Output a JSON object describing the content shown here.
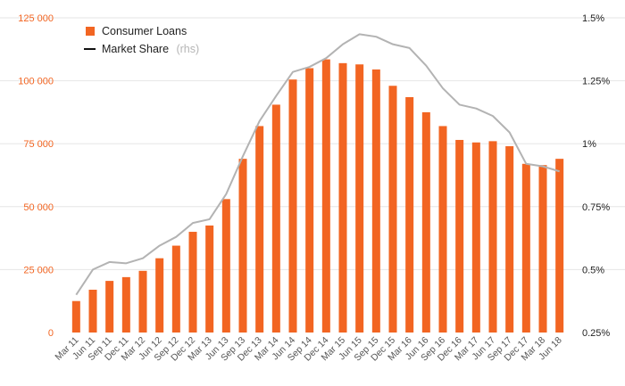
{
  "chart_data": {
    "type": "bar",
    "categories": [
      "Mar 11",
      "Jun 11",
      "Sep 11",
      "Dec 11",
      "Mar 12",
      "Jun 12",
      "Sep 12",
      "Dec 12",
      "Mar 13",
      "Jun 13",
      "Sep 13",
      "Dec 13",
      "Mar 14",
      "Jun 14",
      "Sep 14",
      "Dec 14",
      "Mar 15",
      "Jun 15",
      "Sep 15",
      "Dec 15",
      "Mar 16",
      "Jun 16",
      "Sep 16",
      "Dec 16",
      "Mar 17",
      "Jun 17",
      "Sep 17",
      "Dec 17",
      "Mar 18",
      "Jun 18"
    ],
    "series": [
      {
        "name": "Consumer Loans",
        "type": "bar",
        "axis": "left",
        "color": "#f26522",
        "values": [
          12500,
          17000,
          20500,
          22000,
          24500,
          29500,
          34500,
          40000,
          42500,
          53000,
          69000,
          82000,
          90500,
          100500,
          105000,
          108500,
          107000,
          106500,
          104500,
          98000,
          93500,
          87500,
          82000,
          76500,
          75500,
          76000,
          74000,
          67000,
          66500,
          69000
        ]
      },
      {
        "name": "Market Share",
        "suffix": "(rhs)",
        "type": "line",
        "axis": "right",
        "color": "#b3b3b3",
        "values": [
          0.4,
          0.5,
          0.53,
          0.525,
          0.545,
          0.595,
          0.63,
          0.685,
          0.7,
          0.8,
          0.95,
          1.09,
          1.19,
          1.285,
          1.305,
          1.34,
          1.395,
          1.435,
          1.425,
          1.395,
          1.38,
          1.31,
          1.22,
          1.155,
          1.14,
          1.11,
          1.045,
          0.92,
          0.91,
          0.89
        ]
      }
    ],
    "ylim_left": [
      0,
      125000
    ],
    "yticks_left": [
      "0",
      "25 000",
      "50 000",
      "75 000",
      "100 000",
      "125 000"
    ],
    "ylim_right": [
      0.25,
      1.5
    ],
    "yticks_right": [
      "0.25%",
      "0.5%",
      "0.75%",
      "1%",
      "1.25%",
      "1.5%"
    ],
    "grid": true,
    "legend": "top-left"
  }
}
